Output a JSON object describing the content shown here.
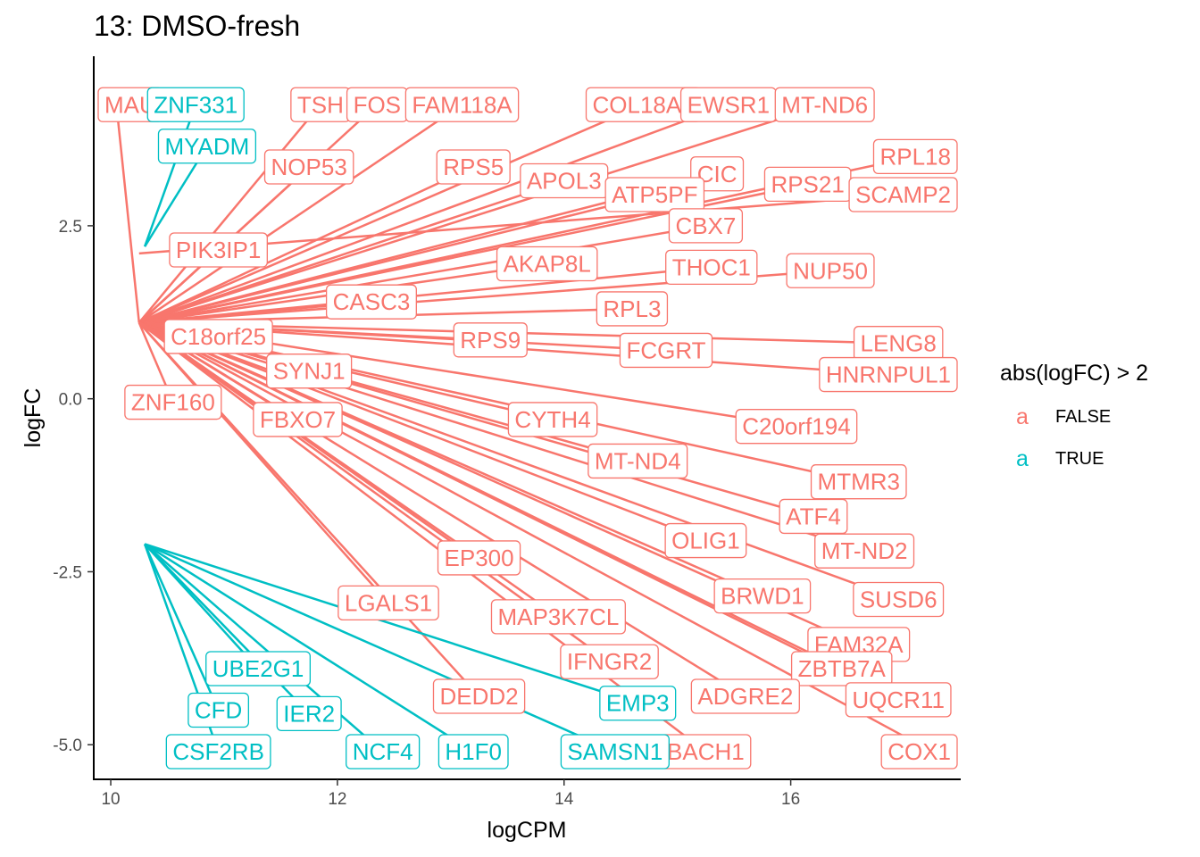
{
  "chart_data": {
    "type": "scatter",
    "title": "13: DMSO-fresh",
    "xlabel": "logCPM",
    "ylabel": "logFC",
    "xlim": [
      9.85,
      17.5
    ],
    "ylim": [
      -5.5,
      4.95
    ],
    "x_ticks": [
      10,
      12,
      14,
      16
    ],
    "y_ticks": [
      -5.0,
      -2.5,
      0.0,
      2.5
    ],
    "x_tick_labels": [
      "10",
      "12",
      "14",
      "16"
    ],
    "y_tick_labels": [
      "-5.0",
      "-2.5",
      "0.0",
      "2.5"
    ],
    "grid": false,
    "legend": {
      "title": "abs(logFC) > 2",
      "position": "right",
      "key_glyph": "a",
      "entries": [
        {
          "label": "FALSE",
          "color": "#F8766D"
        },
        {
          "label": "TRUE",
          "color": "#00BFC4"
        }
      ]
    },
    "series": [
      {
        "name": "FALSE",
        "color": "#F8766D",
        "anchors": [
          [
            10.25,
            1.1
          ],
          [
            10.25,
            2.1
          ],
          [
            10.25,
            -1.3
          ],
          [
            10.2,
            -1.0
          ]
        ],
        "labels": [
          {
            "text": "MAU",
            "x": 10.05,
            "y": 4.25,
            "a": 0
          },
          {
            "text": "TSH",
            "x": 11.85,
            "y": 4.25,
            "a": 0
          },
          {
            "text": "FOS",
            "x": 12.35,
            "y": 4.25,
            "a": 0
          },
          {
            "text": "FAM118A",
            "x": 13.1,
            "y": 4.25,
            "a": 0
          },
          {
            "text": "COL18A1",
            "x": 14.7,
            "y": 4.25,
            "a": 0
          },
          {
            "text": "EWSR1",
            "x": 15.45,
            "y": 4.25,
            "a": 0
          },
          {
            "text": "MT-ND6",
            "x": 16.3,
            "y": 4.25,
            "a": 0
          },
          {
            "text": "NOP53",
            "x": 11.75,
            "y": 3.35,
            "a": 0
          },
          {
            "text": "RPS5",
            "x": 13.2,
            "y": 3.35,
            "a": 0
          },
          {
            "text": "APOL3",
            "x": 14.0,
            "y": 3.15,
            "a": 0
          },
          {
            "text": "CIC",
            "x": 15.35,
            "y": 3.25,
            "a": 0
          },
          {
            "text": "RPL18",
            "x": 17.1,
            "y": 3.5,
            "a": 0
          },
          {
            "text": "ATP5PF",
            "x": 14.8,
            "y": 2.95,
            "a": 0
          },
          {
            "text": "RPS21",
            "x": 16.15,
            "y": 3.1,
            "a": 0
          },
          {
            "text": "SCAMP2",
            "x": 17.0,
            "y": 2.95,
            "a": 1
          },
          {
            "text": "CBX7",
            "x": 15.25,
            "y": 2.5,
            "a": 0
          },
          {
            "text": "PIK3IP1",
            "x": 10.95,
            "y": 2.15,
            "a": 0
          },
          {
            "text": "AKAP8L",
            "x": 13.85,
            "y": 1.95,
            "a": 0
          },
          {
            "text": "THOC1",
            "x": 15.3,
            "y": 1.9,
            "a": 0
          },
          {
            "text": "NUP50",
            "x": 16.35,
            "y": 1.85,
            "a": 0
          },
          {
            "text": "CASC3",
            "x": 12.3,
            "y": 1.4,
            "a": 0
          },
          {
            "text": "RPL3",
            "x": 14.6,
            "y": 1.3,
            "a": 0
          },
          {
            "text": "C18orf25",
            "x": 10.95,
            "y": 0.9,
            "a": 0
          },
          {
            "text": "RPS9",
            "x": 13.35,
            "y": 0.85,
            "a": 0
          },
          {
            "text": "LENG8",
            "x": 16.95,
            "y": 0.8,
            "a": 0
          },
          {
            "text": "FCGRT",
            "x": 14.9,
            "y": 0.7,
            "a": 0
          },
          {
            "text": "SYNJ1",
            "x": 11.75,
            "y": 0.4,
            "a": 0
          },
          {
            "text": "HNRNPUL1",
            "x": 16.9,
            "y": 0.35,
            "a": 0
          },
          {
            "text": "ZNF160",
            "x": 10.55,
            "y": -0.05,
            "a": 0
          },
          {
            "text": "FBXO7",
            "x": 11.65,
            "y": -0.3,
            "a": 0
          },
          {
            "text": "CYTH4",
            "x": 13.9,
            "y": -0.3,
            "a": 0
          },
          {
            "text": "C20orf194",
            "x": 16.05,
            "y": -0.4,
            "a": 0
          },
          {
            "text": "MT-ND4",
            "x": 14.65,
            "y": -0.9,
            "a": 0
          },
          {
            "text": "MTMR3",
            "x": 16.6,
            "y": -1.2,
            "a": 0
          },
          {
            "text": "ATF4",
            "x": 16.2,
            "y": -1.7,
            "a": 0
          },
          {
            "text": "EP300",
            "x": 13.25,
            "y": -2.3,
            "a": 0
          },
          {
            "text": "MT-ND2",
            "x": 16.65,
            "y": -2.2,
            "a": 0
          },
          {
            "text": "OLIG1",
            "x": 15.25,
            "y": -2.05,
            "a": 0
          },
          {
            "text": "BRWD1",
            "x": 15.75,
            "y": -2.85,
            "a": 0
          },
          {
            "text": "SUSD6",
            "x": 16.95,
            "y": -2.9,
            "a": 0
          },
          {
            "text": "LGALS1",
            "x": 12.45,
            "y": -2.95,
            "a": 0
          },
          {
            "text": "MAP3K7CL",
            "x": 13.95,
            "y": -3.15,
            "a": 0
          },
          {
            "text": "FAM32A",
            "x": 16.6,
            "y": -3.55,
            "a": 0
          },
          {
            "text": "IFNGR2",
            "x": 14.4,
            "y": -3.8,
            "a": 0
          },
          {
            "text": "ZBTB7A",
            "x": 16.45,
            "y": -3.9,
            "a": 0
          },
          {
            "text": "DEDD2",
            "x": 13.25,
            "y": -4.3,
            "a": 0
          },
          {
            "text": "ADGRE2",
            "x": 15.6,
            "y": -4.3,
            "a": 0
          },
          {
            "text": "UQCR11",
            "x": 16.95,
            "y": -4.35,
            "a": 0
          },
          {
            "text": "BACH1",
            "x": 15.25,
            "y": -5.1,
            "a": 0
          },
          {
            "text": "COX1",
            "x": 17.25,
            "y": -5.1,
            "a": 0
          }
        ]
      },
      {
        "name": "TRUE",
        "color": "#00BFC4",
        "anchors": [
          [
            10.3,
            2.2
          ],
          [
            10.3,
            -2.1
          ]
        ],
        "labels": [
          {
            "text": "ZNF331",
            "x": 10.75,
            "y": 4.25,
            "a": 0
          },
          {
            "text": "MYADM",
            "x": 10.85,
            "y": 3.65,
            "a": 0
          },
          {
            "text": "UBE2G1",
            "x": 11.3,
            "y": -3.9,
            "a": 1
          },
          {
            "text": "CFD",
            "x": 10.95,
            "y": -4.5,
            "a": 1
          },
          {
            "text": "IER2",
            "x": 11.75,
            "y": -4.55,
            "a": 1
          },
          {
            "text": "EMP3",
            "x": 14.65,
            "y": -4.4,
            "a": 1
          },
          {
            "text": "CSF2RB",
            "x": 10.95,
            "y": -5.1,
            "a": 1
          },
          {
            "text": "NCF4",
            "x": 12.4,
            "y": -5.1,
            "a": 1
          },
          {
            "text": "H1F0",
            "x": 13.2,
            "y": -5.1,
            "a": 1
          },
          {
            "text": "SAMSN1",
            "x": 14.45,
            "y": -5.1,
            "a": 1
          }
        ]
      }
    ]
  }
}
